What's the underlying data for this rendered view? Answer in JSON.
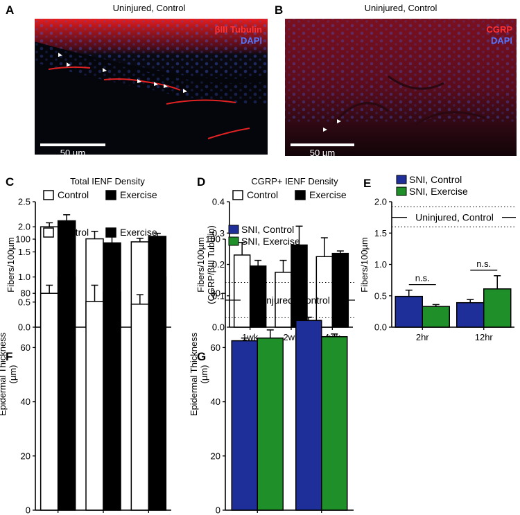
{
  "panels": {
    "A": {
      "letter": "A",
      "title": "Uninjured, Control",
      "stain_labels": [
        "βIII Tubulin",
        "DAPI"
      ],
      "stain_colors": [
        "#ff3333",
        "#5577ff"
      ],
      "scale_bar_label": "50 µm"
    },
    "B": {
      "letter": "B",
      "title": "Uninjured, Control",
      "stain_labels": [
        "CGRP",
        "DAPI"
      ],
      "stain_colors": [
        "#ff3333",
        "#5577ff"
      ],
      "scale_bar_label": "50 µm"
    }
  },
  "chart_data": [
    {
      "id": "C",
      "letter": "C",
      "type": "bar",
      "title": "Total IENF Density",
      "ylabel": "Fibers/100µm",
      "xlabel": "",
      "categories": [
        "1wk",
        "2wk",
        "4wk"
      ],
      "ylim": [
        0,
        2.5
      ],
      "yticks": [
        "0.0",
        "0.5",
        "1.0",
        "1.5",
        "2.0",
        "2.5"
      ],
      "legend_position": "top",
      "series": [
        {
          "name": "Control",
          "color": "#ffffff",
          "values": [
            2.0,
            1.76,
            1.7
          ],
          "errors": [
            0.08,
            0.15,
            0.07
          ]
        },
        {
          "name": "Exercise",
          "color": "#000000",
          "values": [
            2.12,
            1.68,
            1.81
          ],
          "errors": [
            0.12,
            0.13,
            0.06
          ]
        }
      ]
    },
    {
      "id": "D",
      "letter": "D",
      "type": "bar",
      "title": "CGRP+ IENF Density",
      "ylabel": "Fibers/100µm (CGRP/βIII Tubulin)",
      "xlabel": "",
      "categories": [
        "1wk",
        "2wk",
        "4wk"
      ],
      "ylim": [
        0,
        0.4
      ],
      "yticks": [
        "0.0",
        "0.1",
        "0.2",
        "0.3",
        "0.4"
      ],
      "legend_position": "top",
      "series": [
        {
          "name": "Control",
          "color": "#ffffff",
          "values": [
            0.23,
            0.175,
            0.225
          ],
          "errors": [
            0.04,
            0.038,
            0.06
          ]
        },
        {
          "name": "Exercise",
          "color": "#000000",
          "values": [
            0.195,
            0.262,
            0.235
          ],
          "errors": [
            0.018,
            0.06,
            0.008
          ]
        }
      ]
    },
    {
      "id": "E",
      "letter": "E",
      "type": "bar",
      "title": "",
      "ylabel": "Fibers/100µm",
      "xlabel": "",
      "categories": [
        "2hr",
        "12hr"
      ],
      "ylim": [
        0,
        2.0
      ],
      "yticks": [
        "0.0",
        "0.5",
        "1.0",
        "1.5",
        "2.0"
      ],
      "legend_position": "top-left",
      "series": [
        {
          "name": "SNI, Control",
          "color": "#1f2f9a",
          "values": [
            0.49,
            0.39
          ],
          "errors": [
            0.1,
            0.05
          ]
        },
        {
          "name": "SNI, Exercise",
          "color": "#1f8f2a",
          "values": [
            0.33,
            0.61
          ],
          "errors": [
            0.03,
            0.21
          ]
        }
      ],
      "reference": {
        "label": "Uninjured, Control",
        "mean": 1.75,
        "band": [
          1.6,
          1.92
        ]
      },
      "annotations": [
        "n.s.",
        "n.s."
      ]
    },
    {
      "id": "F",
      "letter": "F",
      "type": "bar",
      "title": "",
      "ylabel": "Epidermal Thickness (µm)",
      "xlabel": "",
      "categories": [
        "1wk",
        "2wk",
        "4wk"
      ],
      "ylim": [
        0,
        100
      ],
      "yticks": [
        "0",
        "20",
        "40",
        "60",
        "80",
        "100"
      ],
      "legend_position": "top",
      "series": [
        {
          "name": "Control",
          "color": "#ffffff",
          "values": [
            80,
            77,
            76
          ],
          "errors": [
            3,
            6,
            3.5
          ]
        },
        {
          "name": "Exercise",
          "color": "#000000",
          "values": [
            86,
            80.5,
            86
          ],
          "errors": [
            7,
            4.5,
            6.5
          ]
        }
      ]
    },
    {
      "id": "G",
      "letter": "G",
      "type": "bar",
      "title": "",
      "ylabel": "Epidermal Thickness (µm)",
      "xlabel": "",
      "categories": [
        "2hr",
        "12hr"
      ],
      "ylim": [
        0,
        100
      ],
      "yticks": [
        "0",
        "20",
        "40",
        "60",
        "80",
        "100"
      ],
      "legend_position": "top-left",
      "series": [
        {
          "name": "SNI, Control",
          "color": "#1f2f9a",
          "values": [
            62.5,
            70
          ],
          "errors": [
            1,
            1.2
          ]
        },
        {
          "name": "SNI, Exercise",
          "color": "#1f8f2a",
          "values": [
            63.5,
            64
          ],
          "errors": [
            3,
            1
          ]
        }
      ],
      "reference": {
        "label": "Uninjured, Control",
        "mean": 77.5,
        "band": [
          71,
          84
        ]
      }
    }
  ]
}
